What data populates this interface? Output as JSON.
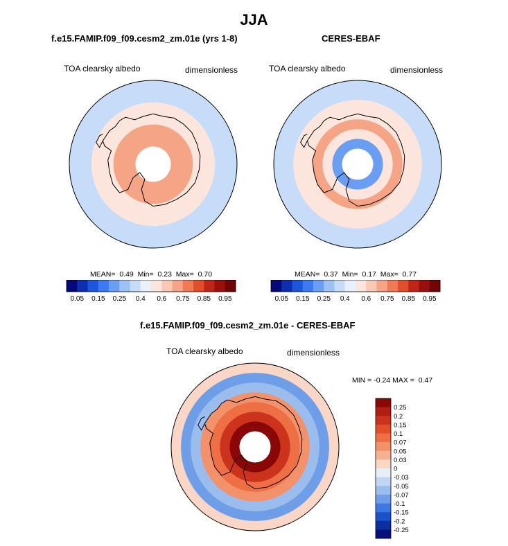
{
  "figure": {
    "suptitle": "JJA"
  },
  "palettes": {
    "abs_levels": [
      "0.05",
      "0.15",
      "0.25",
      "0.4",
      "0.6",
      "0.75",
      "0.85",
      "0.95"
    ],
    "abs_colors": [
      "#08087a",
      "#0c2fb0",
      "#1d56dd",
      "#3b7af0",
      "#6a9ef2",
      "#9cc2f5",
      "#c6dcf8",
      "#e8f1fc",
      "#fbe5dc",
      "#f8c9b4",
      "#f5a486",
      "#f07a55",
      "#e04e2c",
      "#c02618",
      "#990f0c",
      "#700505"
    ],
    "diff_levels": [
      "0.25",
      "0.2",
      "0.15",
      "0.1",
      "0.07",
      "0.05",
      "0.03",
      "0",
      "-0.03",
      "-0.05",
      "-0.07",
      "-0.1",
      "-0.15",
      "-0.2",
      "-0.25"
    ],
    "diff_colors": [
      "#8a0707",
      "#b01e12",
      "#cc331c",
      "#e34e2a",
      "#ef6f45",
      "#f3916a",
      "#f6b193",
      "#f9d6c5",
      "#e6eef8",
      "#c0d6f2",
      "#9bbdee",
      "#6f9ee8",
      "#3f78e0",
      "#1a52cc",
      "#0c2ea0",
      "#05107a"
    ]
  },
  "chart_data": [
    {
      "type": "heatmap",
      "projection": "south-polar-stereographic",
      "title": "f.e15.FAMIP.f09_f09.cesm2_zm.01e (yrs 1-8)",
      "left_label": "TOA clearsky albedo",
      "right_label": "dimensionless",
      "stats": {
        "mean_label": "MEAN=",
        "mean": "0.49",
        "min_label": "Min=",
        "min": "0.23",
        "max_label": "Max=",
        "max": "0.70"
      },
      "zonal_rings_outer_to_inner": [
        0.25,
        0.35,
        0.45,
        0.55,
        0.62,
        0.65,
        null
      ],
      "colorbar_ticks": [
        "0.05",
        "0.15",
        "0.25",
        "0.4",
        "0.6",
        "0.75",
        "0.85",
        "0.95"
      ]
    },
    {
      "type": "heatmap",
      "projection": "south-polar-stereographic",
      "title": "CERES-EBAF",
      "left_label": "TOA clearsky albedo",
      "right_label": "dimensionless",
      "stats": {
        "mean_label": "MEAN=",
        "mean": "0.37",
        "min_label": "Min=",
        "min": "0.17",
        "max_label": "Max=",
        "max": "0.77"
      },
      "zonal_rings_outer_to_inner": [
        0.25,
        0.33,
        0.45,
        0.55,
        0.62,
        0.45,
        0.2,
        null
      ],
      "colorbar_ticks": [
        "0.05",
        "0.15",
        "0.25",
        "0.4",
        "0.6",
        "0.75",
        "0.85",
        "0.95"
      ]
    },
    {
      "type": "heatmap",
      "projection": "south-polar-stereographic",
      "title": "f.e15.FAMIP.f09_f09.cesm2_zm.01e - CERES-EBAF",
      "left_label": "TOA clearsky albedo",
      "right_label": "dimensionless",
      "stats": {
        "min_label": "MIN =",
        "min": "-0.24",
        "max_label": "MAX =",
        "max": "0.47"
      },
      "zonal_rings_outer_to_inner": [
        0,
        -0.1,
        -0.07,
        0.05,
        0.07,
        0.15,
        0.25,
        null
      ],
      "colorbar_ticks": [
        "0.25",
        "0.2",
        "0.15",
        "0.1",
        "0.07",
        "0.05",
        "0.03",
        "0",
        "-0.03",
        "-0.05",
        "-0.07",
        "-0.1",
        "-0.15",
        "-0.2",
        "-0.25"
      ]
    }
  ]
}
